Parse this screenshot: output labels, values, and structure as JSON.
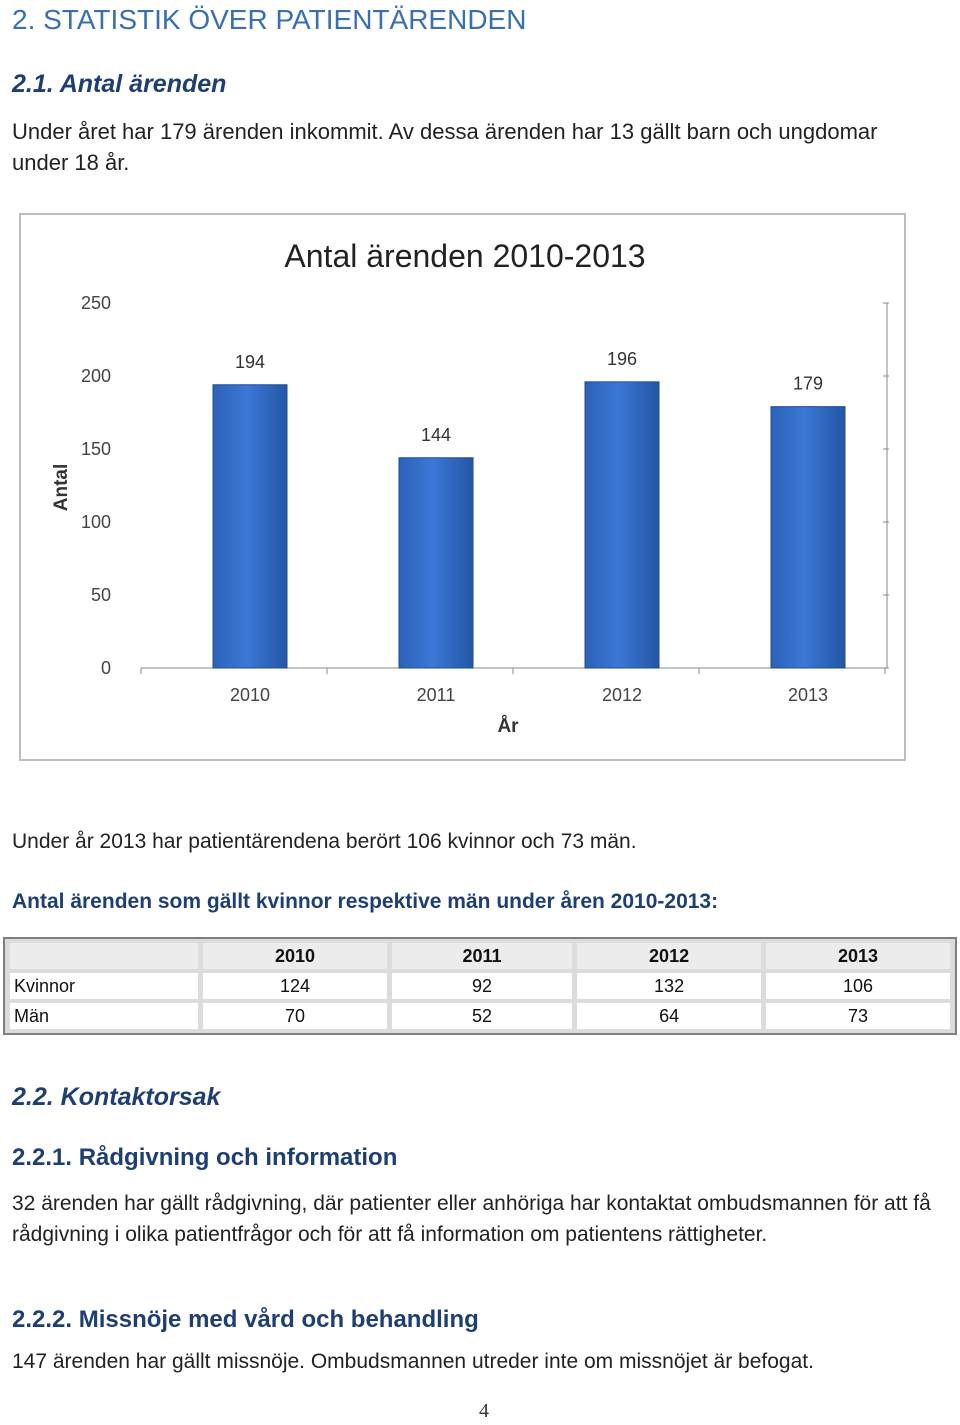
{
  "heading_main": "2. STATISTIK ÖVER PATIENTÄRENDEN",
  "heading_sub1": "2.1. Antal ärenden",
  "para1": "Under året har 179 ärenden inkommit. Av dessa ärenden har 13 gällt barn och ungdomar under 18 år.",
  "chart_data": {
    "type": "bar",
    "title": "Antal ärenden 2010-2013",
    "xlabel": "År",
    "ylabel": "Antal",
    "categories": [
      "2010",
      "2011",
      "2012",
      "2013"
    ],
    "values": [
      194,
      144,
      196,
      179
    ],
    "data_labels": [
      "194",
      "144",
      "196",
      "179"
    ],
    "ylim": [
      0,
      250
    ],
    "yticks": [
      "0",
      "50",
      "100",
      "150",
      "200",
      "250"
    ],
    "bar_color": "#3b78d6",
    "grid": false,
    "legend": "none"
  },
  "para2": "Under år 2013 har patientärendena berört 106 kvinnor och 73 män.",
  "table_caption": "Antal ärenden som gällt kvinnor respektive män under åren 2010-2013:",
  "table": {
    "headers": [
      "2010",
      "2011",
      "2012",
      "2013"
    ],
    "rows": [
      {
        "label": "Kvinnor",
        "values": [
          "124",
          "92",
          "132",
          "106"
        ]
      },
      {
        "label": "Män",
        "values": [
          "70",
          "52",
          "64",
          "73"
        ]
      }
    ]
  },
  "heading_sub2": "2.2. Kontaktorsak",
  "heading_sub3": "2.2.1. Rådgivning och information",
  "para3": "32 ärenden har gällt rådgivning, där patienter eller anhöriga har kontaktat ombudsmannen för att få rådgivning i olika patientfrågor och för att få information om patientens rättigheter.",
  "heading_sub4": "2.2.2. Missnöje med vård och behandling",
  "para4": "147 ärenden har gällt missnöje. Ombudsmannen utreder inte om missnöjet är befogat.",
  "page_number": "4"
}
